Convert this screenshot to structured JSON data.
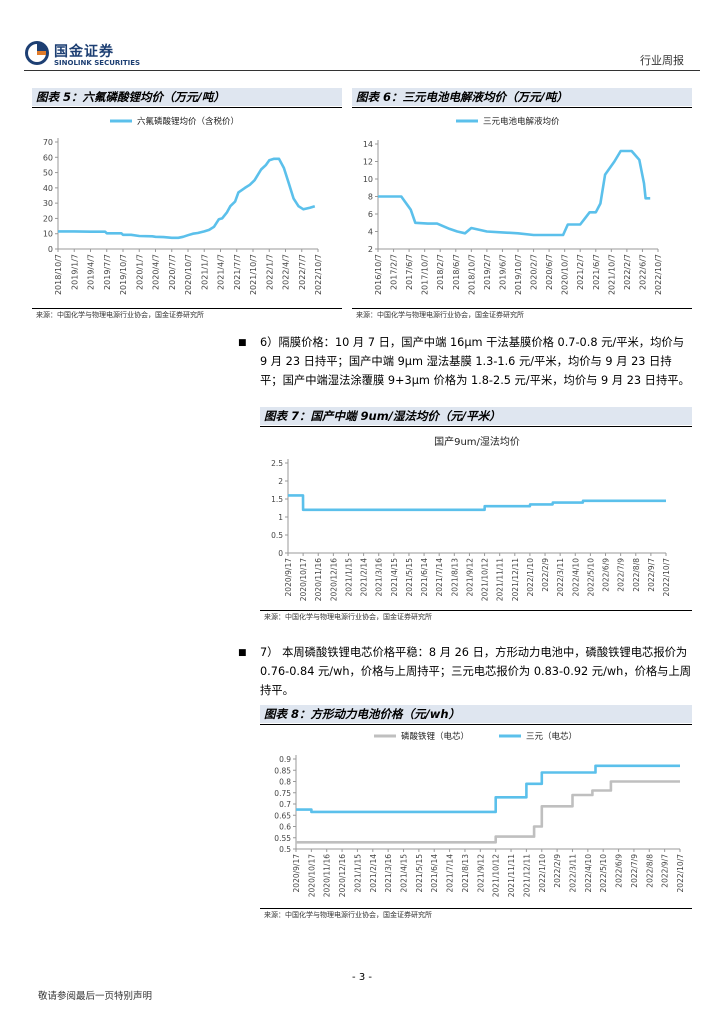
{
  "header": {
    "logo_cn": "国金证券",
    "logo_en": "SINOLINK SECURITIES",
    "doc_type": "行业周报"
  },
  "fig5": {
    "title": "图表 5：六氟磷酸锂均价（万元/吨）",
    "source": "来源：中国化学与物理电源行业协会，国金证券研究所"
  },
  "fig6": {
    "title": "图表 6：三元电池电解液均价（万元/吨）",
    "source": "来源：中国化学与物理电源行业协会，国金证券研究所"
  },
  "para6": {
    "text": "6）隔膜价格：10 月 7 日，国产中端 16μm 干法基膜价格 0.7-0.8 元/平米，均价与 9 月 23 日持平；国产中端 9μm 湿法基膜 1.3-1.6 元/平米，均价与 9 月 23 日持平；国产中端湿法涂覆膜 9+3μm 价格为 1.8-2.5 元/平米，均价与 9 月 23 日持平。"
  },
  "fig7": {
    "title": "图表 7：国产中端 9um/湿法均价（元/平米）",
    "source": "来源：中国化学与物理电源行业协会，国金证券研究所"
  },
  "para7": {
    "text": "7） 本周磷酸铁锂电芯价格平稳：8 月 26 日，方形动力电池中，磷酸铁锂电芯报价为 0.76-0.84 元/wh，价格与上周持平；三元电芯报价为 0.83-0.92 元/wh，价格与上周持平。"
  },
  "fig8": {
    "title": "图表 8：方形动力电池价格（元/wh）",
    "source": "来源：中国化学与物理电源行业协会，国金证券研究所"
  },
  "footer": {
    "page_number": "- 3 -",
    "note": "敬请参阅最后一页特别声明"
  },
  "colors": {
    "series_blue": "#5bc0eb",
    "series_gray": "#bfbfbf",
    "brand": "#1d3f73"
  },
  "chart_data": [
    {
      "id": "fig5",
      "type": "line",
      "title": "",
      "legend": [
        "六氟磷酸锂均价（含税价）"
      ],
      "ylim": [
        0,
        70
      ],
      "yticks": [
        0,
        10,
        20,
        30,
        40,
        50,
        60,
        70
      ],
      "categories": [
        "2018/10/7",
        "2019/1/7",
        "2019/4/7",
        "2019/7/7",
        "2019/10/7",
        "2020/1/7",
        "2020/4/7",
        "2020/7/7",
        "2020/10/7",
        "2021/1/7",
        "2021/4/7",
        "2021/7/7",
        "2021/10/7",
        "2022/1/7",
        "2022/4/7",
        "2022/7/7",
        "2022/10/7"
      ],
      "series": [
        {
          "name": "六氟磷酸锂均价（含税价）",
          "x": [
            0,
            1,
            2,
            2.9,
            3,
            3.9,
            4,
            4.5,
            5,
            5.8,
            6,
            6.5,
            7,
            7.4,
            7.7,
            8,
            8.3,
            8.6,
            9,
            9.3,
            9.6,
            9.9,
            10.1,
            10.4,
            10.6,
            10.9,
            11.1,
            11.5,
            11.8,
            12.1,
            12.5,
            12.8,
            13,
            13.3,
            13.6,
            13.9,
            14.2,
            14.5,
            14.8,
            15.1,
            15.5,
            15.8
          ],
          "values": [
            11.5,
            11.5,
            11.3,
            11.3,
            10.3,
            10.3,
            9.3,
            9.3,
            8.5,
            8.3,
            8,
            7.8,
            7.3,
            7.3,
            8,
            9,
            10,
            10.5,
            11.5,
            12.5,
            14.5,
            19.5,
            20,
            24,
            28,
            31,
            37,
            40,
            42,
            45,
            52,
            55,
            58,
            59,
            59,
            53,
            43,
            33,
            28,
            26,
            27,
            28
          ]
        }
      ]
    },
    {
      "id": "fig6",
      "type": "line",
      "title": "",
      "legend": [
        "三元电池电解液均价"
      ],
      "ylim": [
        2,
        14
      ],
      "yticks": [
        2,
        4,
        6,
        8,
        10,
        12,
        14
      ],
      "categories": [
        "2016/10/7",
        "2017/2/7",
        "2017/6/7",
        "2017/10/7",
        "2018/2/7",
        "2018/6/7",
        "2018/10/7",
        "2019/2/7",
        "2019/6/7",
        "2019/10/7",
        "2020/2/7",
        "2020/6/7",
        "2020/10/7",
        "2021/2/7",
        "2021/6/7",
        "2021/10/7",
        "2022/2/7",
        "2022/6/7",
        "2022/10/7"
      ],
      "series": [
        {
          "name": "三元电池电解液均价",
          "x": [
            0,
            1.5,
            1.7,
            1.9,
            2.1,
            2.4,
            3.2,
            3.8,
            4.6,
            5.1,
            5.6,
            6,
            7,
            8,
            9,
            10,
            11,
            11.9,
            12.2,
            13,
            13.3,
            13.6,
            14,
            14.3,
            14.6,
            15.2,
            15.6,
            16.3,
            16.8,
            17.1,
            17.2,
            17.5
          ],
          "values": [
            8,
            8,
            7.5,
            7,
            6.5,
            5,
            4.9,
            4.9,
            4.3,
            4,
            3.8,
            4.4,
            4,
            3.9,
            3.8,
            3.6,
            3.6,
            3.6,
            4.8,
            4.8,
            5.5,
            6.2,
            6.2,
            7.2,
            10.5,
            12,
            13.2,
            13.2,
            12.2,
            9.5,
            7.8,
            7.8
          ]
        }
      ]
    },
    {
      "id": "fig7",
      "type": "line",
      "title": "国产9um/湿法均价",
      "legend": [],
      "ylim": [
        0,
        2.5
      ],
      "yticks": [
        0,
        0.5,
        1,
        1.5,
        2,
        2.5
      ],
      "categories": [
        "2020/9/17",
        "2020/10/17",
        "2020/11/16",
        "2020/12/16",
        "2021/1/15",
        "2021/2/14",
        "2021/3/16",
        "2021/4/15",
        "2021/5/15",
        "2021/6/14",
        "2021/7/14",
        "2021/8/13",
        "2021/9/12",
        "2021/10/12",
        "2021/11/11",
        "2021/12/11",
        "2022/1/10",
        "2022/2/9",
        "2022/3/11",
        "2022/4/10",
        "2022/5/10",
        "2022/6/9",
        "2022/7/9",
        "2022/8/8",
        "2022/9/7",
        "2022/10/7"
      ],
      "series": [
        {
          "name": "国产9um/湿法均价",
          "x": [
            0,
            0.99,
            1.0,
            13,
            13.01,
            16,
            16.01,
            17.5,
            17.51,
            19.5,
            19.51,
            24,
            24.5,
            25
          ],
          "values": [
            1.6,
            1.6,
            1.2,
            1.2,
            1.3,
            1.3,
            1.35,
            1.35,
            1.4,
            1.4,
            1.45,
            1.45,
            1.45,
            1.45
          ]
        }
      ]
    },
    {
      "id": "fig8",
      "type": "line",
      "title": "",
      "legend": [
        "磷酸铁锂（电芯）",
        "三元（电芯）"
      ],
      "ylim": [
        0.5,
        0.9
      ],
      "yticks": [
        0.5,
        0.55,
        0.6,
        0.65,
        0.7,
        0.75,
        0.8,
        0.85,
        0.9
      ],
      "categories": [
        "2020/9/17",
        "2020/10/17",
        "2020/11/16",
        "2020/12/16",
        "2021/1/15",
        "2021/2/14",
        "2021/3/16",
        "2021/4/15",
        "2021/5/15",
        "2021/6/14",
        "2021/7/14",
        "2021/8/13",
        "2021/9/12",
        "2021/10/12",
        "2021/11/11",
        "2021/12/11",
        "2022/1/10",
        "2022/2/9",
        "2022/3/11",
        "2022/4/10",
        "2022/5/10",
        "2022/6/9",
        "2022/7/9",
        "2022/8/8",
        "2022/9/7",
        "2022/10/7"
      ],
      "series": [
        {
          "name": "磷酸铁锂（电芯）",
          "x": [
            0,
            13,
            13,
            14,
            14,
            15.5,
            15.5,
            16,
            16,
            17,
            17,
            18,
            18,
            19.3,
            19.3,
            20.5,
            20.5,
            25
          ],
          "values": [
            0.53,
            0.53,
            0.555,
            0.555,
            0.555,
            0.555,
            0.6,
            0.6,
            0.69,
            0.69,
            0.69,
            0.69,
            0.74,
            0.74,
            0.76,
            0.76,
            0.8,
            0.8
          ]
        },
        {
          "name": "三元（电芯）",
          "x": [
            0,
            1,
            1,
            13,
            13,
            14,
            14,
            15,
            15,
            16,
            16,
            19.5,
            19.5,
            25
          ],
          "values": [
            0.675,
            0.675,
            0.665,
            0.665,
            0.73,
            0.73,
            0.73,
            0.73,
            0.79,
            0.79,
            0.84,
            0.84,
            0.87,
            0.87
          ]
        }
      ]
    }
  ]
}
